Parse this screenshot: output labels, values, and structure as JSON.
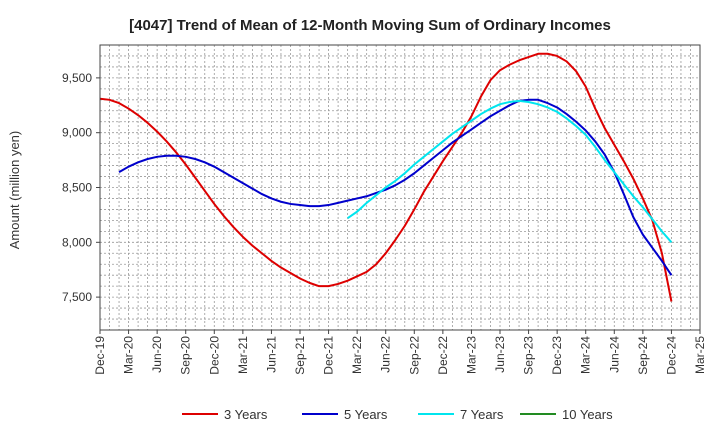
{
  "chart_data": {
    "type": "line",
    "title": "[4047]  Trend of Mean of 12-Month Moving Sum of Ordinary Incomes",
    "xlabel": "",
    "ylabel": "Amount (million yen)",
    "ylim": [
      7200,
      9800
    ],
    "yticks": [
      7500,
      8000,
      8500,
      9000,
      9500
    ],
    "ytick_labels": [
      "7,500",
      "8,000",
      "8,500",
      "9,000",
      "9,500"
    ],
    "x_range": [
      0,
      63
    ],
    "xticks": [
      0,
      3,
      6,
      9,
      12,
      15,
      18,
      21,
      24,
      27,
      30,
      33,
      36,
      39,
      42,
      45,
      48,
      51,
      54,
      57,
      60,
      63
    ],
    "xtick_labels": [
      "Dec-19",
      "Mar-20",
      "Jun-20",
      "Sep-20",
      "Dec-20",
      "Mar-21",
      "Jun-21",
      "Sep-21",
      "Dec-21",
      "Mar-22",
      "Jun-22",
      "Sep-22",
      "Dec-22",
      "Mar-23",
      "Jun-23",
      "Sep-23",
      "Dec-23",
      "Mar-24",
      "Jun-24",
      "Sep-24",
      "Dec-24",
      "Mar-25"
    ],
    "grid": true,
    "legend_position": "bottom",
    "series": [
      {
        "name": "3 Years",
        "color": "#dd0000",
        "x": [
          0,
          1,
          2,
          3,
          4,
          5,
          6,
          7,
          8,
          9,
          10,
          11,
          12,
          13,
          14,
          15,
          16,
          17,
          18,
          19,
          20,
          21,
          22,
          23,
          24,
          25,
          26,
          27,
          28,
          29,
          30,
          31,
          32,
          33,
          34,
          35,
          36,
          37,
          38,
          39,
          40,
          41,
          42,
          43,
          44,
          45,
          46,
          47,
          48,
          49,
          50,
          51,
          52,
          53,
          54,
          55,
          56,
          57,
          58,
          59,
          60
        ],
        "values": [
          9310,
          9300,
          9270,
          9220,
          9160,
          9090,
          9010,
          8920,
          8820,
          8710,
          8590,
          8470,
          8350,
          8240,
          8140,
          8050,
          7970,
          7900,
          7830,
          7770,
          7720,
          7670,
          7630,
          7600,
          7600,
          7620,
          7650,
          7690,
          7730,
          7800,
          7900,
          8020,
          8150,
          8300,
          8460,
          8600,
          8740,
          8870,
          9000,
          9150,
          9330,
          9480,
          9570,
          9620,
          9660,
          9690,
          9720,
          9720,
          9700,
          9650,
          9560,
          9420,
          9220,
          9040,
          8890,
          8740,
          8580,
          8400,
          8200,
          7900,
          7460
        ]
      },
      {
        "name": "5 Years",
        "color": "#0000cc",
        "x": [
          2,
          3,
          4,
          5,
          6,
          7,
          8,
          9,
          10,
          11,
          12,
          13,
          14,
          15,
          16,
          17,
          18,
          19,
          20,
          21,
          22,
          23,
          24,
          25,
          26,
          27,
          28,
          29,
          30,
          31,
          32,
          33,
          34,
          35,
          36,
          37,
          38,
          39,
          40,
          41,
          42,
          43,
          44,
          45,
          46,
          47,
          48,
          49,
          50,
          51,
          52,
          53,
          54,
          55,
          56,
          57,
          58,
          59,
          60
        ],
        "values": [
          8640,
          8690,
          8730,
          8760,
          8780,
          8790,
          8790,
          8780,
          8760,
          8730,
          8690,
          8640,
          8590,
          8540,
          8490,
          8440,
          8400,
          8370,
          8350,
          8340,
          8330,
          8330,
          8340,
          8360,
          8380,
          8400,
          8420,
          8450,
          8480,
          8520,
          8570,
          8630,
          8700,
          8770,
          8840,
          8910,
          8970,
          9030,
          9090,
          9150,
          9200,
          9250,
          9290,
          9300,
          9300,
          9270,
          9230,
          9170,
          9100,
          9020,
          8920,
          8800,
          8640,
          8440,
          8230,
          8070,
          7950,
          7830,
          7700
        ]
      },
      {
        "name": "7 Years",
        "color": "#00e5ee",
        "x": [
          26,
          27,
          28,
          29,
          30,
          31,
          32,
          33,
          34,
          35,
          36,
          37,
          38,
          39,
          40,
          41,
          42,
          43,
          44,
          45,
          46,
          47,
          48,
          49,
          50,
          51,
          52,
          53,
          54,
          55,
          56,
          57,
          58,
          59,
          60
        ],
        "values": [
          8220,
          8280,
          8360,
          8430,
          8500,
          8560,
          8630,
          8710,
          8780,
          8850,
          8920,
          8990,
          9050,
          9110,
          9170,
          9220,
          9260,
          9280,
          9290,
          9280,
          9260,
          9230,
          9190,
          9130,
          9060,
          8980,
          8870,
          8750,
          8640,
          8530,
          8420,
          8320,
          8210,
          8100,
          8000
        ]
      },
      {
        "name": "10 Years",
        "color": "#228b22",
        "x": [],
        "values": []
      }
    ]
  }
}
